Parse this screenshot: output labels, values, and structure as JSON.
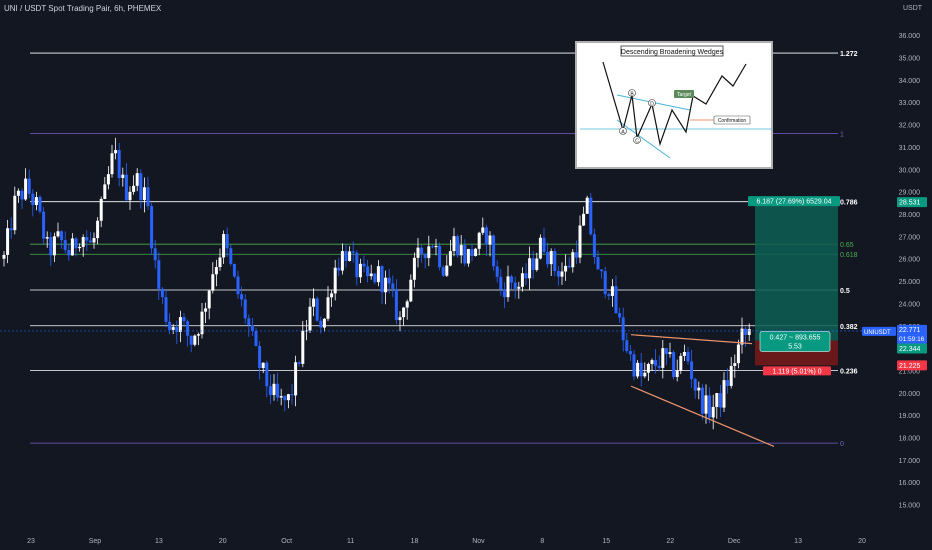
{
  "chart_data": {
    "type": "candlestick",
    "title": "UNI / USDT Spot Trading Pair, 6h, PHEMEX",
    "price_axis": {
      "unit_label": "USDT",
      "ticks": [
        "36.000",
        "35.000",
        "34.000",
        "33.000",
        "32.000",
        "31.000",
        "30.000",
        "29.000",
        "28.000",
        "27.000",
        "26.000",
        "25.000",
        "24.000",
        "23.000",
        "22.000",
        "21.000",
        "20.000",
        "19.000",
        "18.000",
        "17.000",
        "16.000",
        "15.000"
      ],
      "ylim": [
        14.4,
        36.5
      ]
    },
    "time_axis": {
      "ticks": [
        "23",
        "Sep",
        "13",
        "20",
        "Oct",
        "11",
        "18",
        "Nov",
        "8",
        "15",
        "22",
        "Dec",
        "13",
        "20"
      ]
    },
    "fibonacci_levels": [
      {
        "label": "1.272",
        "price": 35.2,
        "color": "#ffffff"
      },
      {
        "label": "1",
        "price": 31.6,
        "color": "#7b5fc8"
      },
      {
        "label": "0.786",
        "price": 28.55,
        "color": "#ffffff"
      },
      {
        "label": "0.65",
        "price": 26.65,
        "color": "#4caf50"
      },
      {
        "label": "0.618",
        "price": 26.2,
        "color": "#4caf50"
      },
      {
        "label": "0.5",
        "price": 24.6,
        "color": "#ffffff"
      },
      {
        "label": "0.382",
        "price": 23.0,
        "color": "#ffffff"
      },
      {
        "label": "0.236",
        "price": 21.0,
        "color": "#ffffff"
      },
      {
        "label": "0",
        "price": 17.75,
        "color": "#7b5fc8"
      }
    ],
    "price_path": [
      {
        "x": 0,
        "y": 26.0
      },
      {
        "x": 1,
        "y": 28.5
      },
      {
        "x": 2,
        "y": 29.2
      },
      {
        "x": 3,
        "y": 28.3
      },
      {
        "x": 4,
        "y": 26.3
      },
      {
        "x": 5,
        "y": 26.9
      },
      {
        "x": 6,
        "y": 26.2
      },
      {
        "x": 7,
        "y": 27.2
      },
      {
        "x": 8,
        "y": 26.5
      },
      {
        "x": 9,
        "y": 28.5
      },
      {
        "x": 10,
        "y": 30.8
      },
      {
        "x": 11,
        "y": 29.0
      },
      {
        "x": 12,
        "y": 29.6
      },
      {
        "x": 13,
        "y": 28.6
      },
      {
        "x": 14,
        "y": 24.8
      },
      {
        "x": 15,
        "y": 23.0
      },
      {
        "x": 16,
        "y": 23.2
      },
      {
        "x": 17,
        "y": 22.3
      },
      {
        "x": 18,
        "y": 23.4
      },
      {
        "x": 19,
        "y": 25.5
      },
      {
        "x": 20,
        "y": 26.8
      },
      {
        "x": 21,
        "y": 24.8
      },
      {
        "x": 22,
        "y": 23.4
      },
      {
        "x": 23,
        "y": 21.5
      },
      {
        "x": 24,
        "y": 20.3
      },
      {
        "x": 25,
        "y": 19.5
      },
      {
        "x": 26,
        "y": 19.7
      },
      {
        "x": 27,
        "y": 22.0
      },
      {
        "x": 28,
        "y": 24.0
      },
      {
        "x": 29,
        "y": 23.0
      },
      {
        "x": 30,
        "y": 25.5
      },
      {
        "x": 31,
        "y": 26.4
      },
      {
        "x": 32,
        "y": 25.5
      },
      {
        "x": 33,
        "y": 25.0
      },
      {
        "x": 34,
        "y": 25.3
      },
      {
        "x": 35,
        "y": 24.6
      },
      {
        "x": 36,
        "y": 23.2
      },
      {
        "x": 37,
        "y": 25.2
      },
      {
        "x": 38,
        "y": 26.4
      },
      {
        "x": 39,
        "y": 26.8
      },
      {
        "x": 40,
        "y": 25.6
      },
      {
        "x": 41,
        "y": 26.9
      },
      {
        "x": 42,
        "y": 26.0
      },
      {
        "x": 43,
        "y": 26.6
      },
      {
        "x": 44,
        "y": 27.2
      },
      {
        "x": 45,
        "y": 24.6
      },
      {
        "x": 46,
        "y": 25.0
      },
      {
        "x": 47,
        "y": 24.7
      },
      {
        "x": 48,
        "y": 25.8
      },
      {
        "x": 49,
        "y": 26.8
      },
      {
        "x": 50,
        "y": 25.6
      },
      {
        "x": 51,
        "y": 25.4
      },
      {
        "x": 52,
        "y": 26.5
      },
      {
        "x": 53,
        "y": 28.3
      },
      {
        "x": 54,
        "y": 25.2
      },
      {
        "x": 55,
        "y": 24.8
      },
      {
        "x": 56,
        "y": 23.0
      },
      {
        "x": 57,
        "y": 21.5
      },
      {
        "x": 58,
        "y": 20.6
      },
      {
        "x": 59,
        "y": 21.2
      },
      {
        "x": 60,
        "y": 21.6
      },
      {
        "x": 61,
        "y": 21.0
      },
      {
        "x": 62,
        "y": 21.8
      },
      {
        "x": 63,
        "y": 20.0
      },
      {
        "x": 64,
        "y": 19.2
      },
      {
        "x": 65,
        "y": 19.6
      },
      {
        "x": 66,
        "y": 20.8
      },
      {
        "x": 67,
        "y": 22.4
      },
      {
        "x": 68,
        "y": 22.8
      }
    ],
    "wedge_upper": [
      {
        "x": 57,
        "y": 22.6
      },
      {
        "x": 68,
        "y": 22.2
      }
    ],
    "wedge_lower": [
      {
        "x": 57,
        "y": 20.3
      },
      {
        "x": 70,
        "y": 17.6
      }
    ],
    "long_position": {
      "target_price": 28.53,
      "entry_price": 22.34,
      "stop_price": 21.23,
      "target_label": "6.187 (27.69%) 6529.04",
      "info_line1": "0.427 ~ 893.655",
      "info_line2": "5.53",
      "stop_label": "1.119 (5.01%) 0"
    },
    "price_badges": {
      "target": "28.531",
      "symbol": "UNIUSDT",
      "last_price": "22.771",
      "countdown": "01:59:16",
      "entry": "22.344",
      "stop": "21.225"
    },
    "inset": {
      "title": "Descending Broadening Wedges",
      "point_labels": [
        "A",
        "B",
        "C",
        "D"
      ],
      "target_label": "Target",
      "confirmation_label": "Confirmation"
    },
    "colors": {
      "background": "#131722",
      "candle": "#2962ff",
      "candle_up": "#ffffff",
      "fib_white": "#ffffff",
      "fib_purple": "#7b5fc8",
      "fib_green": "#4caf50",
      "wedge": "#e8926b",
      "profit_zone": "#0d5f54",
      "loss_zone": "#7a1a1a",
      "target_badge": "#089981",
      "stop_badge": "#f23645",
      "last_badge": "#2962ff"
    }
  }
}
